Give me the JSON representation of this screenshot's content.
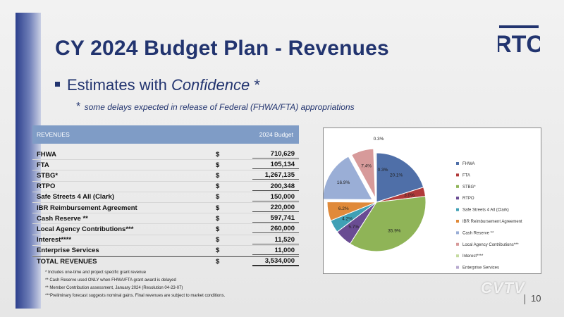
{
  "title": "CY 2024 Budget Plan - Revenues",
  "logo_text": "RTC",
  "bullet": {
    "prefix": "Estimates with ",
    "emph": "Confidence",
    "suffix": " *"
  },
  "note": {
    "star": "*",
    "text": "some delays expected in release of Federal (FHWA/FTA) appropriations"
  },
  "table": {
    "header_left": "REVENUES",
    "header_right": "2024 Budget",
    "currency": "$",
    "rows": [
      {
        "name": "FHWA",
        "amount": "710,629"
      },
      {
        "name": "FTA",
        "amount": "105,134"
      },
      {
        "name": "STBG*",
        "amount": "1,267,135"
      },
      {
        "name": "RTPO",
        "amount": "200,348"
      },
      {
        "name": "Safe Streets 4 All (Clark)",
        "amount": "150,000"
      },
      {
        "name": "IBR Reimbursement Agreement",
        "amount": "220,000"
      },
      {
        "name": "Cash Reserve **",
        "amount": "597,741"
      },
      {
        "name": "Local Agency Contributions***",
        "amount": "260,000"
      },
      {
        "name": "Interest****",
        "amount": "11,520"
      },
      {
        "name": "Enterprise Services",
        "amount": "11,000"
      }
    ],
    "total": {
      "name": "TOTAL REVENUES",
      "amount": "3,534,000"
    },
    "footnotes": [
      "* Includes one-time and project specific grant revenue",
      "** Cash Reserve used ONLY when FHWA/FTA grant award is delayed",
      "** Member Contribution assessment, January 2024 (Resolution 04-23-07)",
      "***Preliminary forecast suggests nominal gains.  Final revenues are subject to market conditions."
    ]
  },
  "chart_data": {
    "type": "pie",
    "slices": [
      {
        "label": "FHWA",
        "value": 20.1,
        "text": "20.1%",
        "color": "#4f6fa8"
      },
      {
        "label": "FTA",
        "value": 3.0,
        "text": "3.0%",
        "color": "#b03a3a"
      },
      {
        "label": "STBG*",
        "value": 35.9,
        "text": "35.9%",
        "color": "#8fb457"
      },
      {
        "label": "RTPO",
        "value": 5.7,
        "text": "5.7%",
        "color": "#6a4c93"
      },
      {
        "label": "Safe Streets 4 All (Clark)",
        "value": 4.2,
        "text": "4.2%",
        "color": "#3fa0b5"
      },
      {
        "label": "IBR Reimbursement Agreement",
        "value": 6.2,
        "text": "6.2%",
        "color": "#e08a3a"
      },
      {
        "label": "Cash Reserve **",
        "value": 16.9,
        "text": "16.9%",
        "color": "#9aaed6"
      },
      {
        "label": "Local Agency Contributions***",
        "value": 7.4,
        "text": "7.4%",
        "color": "#d79a9a"
      },
      {
        "label": "Interest****",
        "value": 0.3,
        "text": "0.3%",
        "color": "#c5dba0"
      },
      {
        "label": "Enterprise Services",
        "value": 0.3,
        "text": "0.3%",
        "color": "#b7a9cf"
      }
    ]
  },
  "watermark": "CVTV",
  "page_number": "10"
}
